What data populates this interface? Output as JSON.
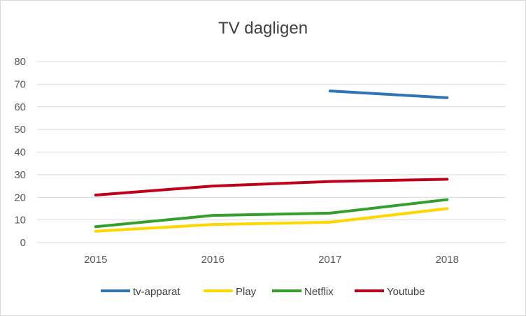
{
  "chart_data": {
    "type": "line",
    "title": "TV dagligen",
    "xlabel": "",
    "ylabel": "",
    "categories": [
      "2015",
      "2016",
      "2017",
      "2018"
    ],
    "ylim": [
      0,
      80
    ],
    "yticks": [
      0,
      10,
      20,
      30,
      40,
      50,
      60,
      70,
      80
    ],
    "grid": true,
    "legend_position": "bottom",
    "series": [
      {
        "name": "tv-apparat",
        "color": "#2e75b6",
        "values": [
          null,
          null,
          67,
          64
        ]
      },
      {
        "name": "Play",
        "color": "#ffd700",
        "values": [
          5,
          8,
          9,
          15
        ]
      },
      {
        "name": "Netflix",
        "color": "#33a02c",
        "values": [
          7,
          12,
          13,
          19
        ]
      },
      {
        "name": "Youtube",
        "color": "#c0001a",
        "values": [
          21,
          25,
          27,
          28
        ]
      }
    ]
  }
}
